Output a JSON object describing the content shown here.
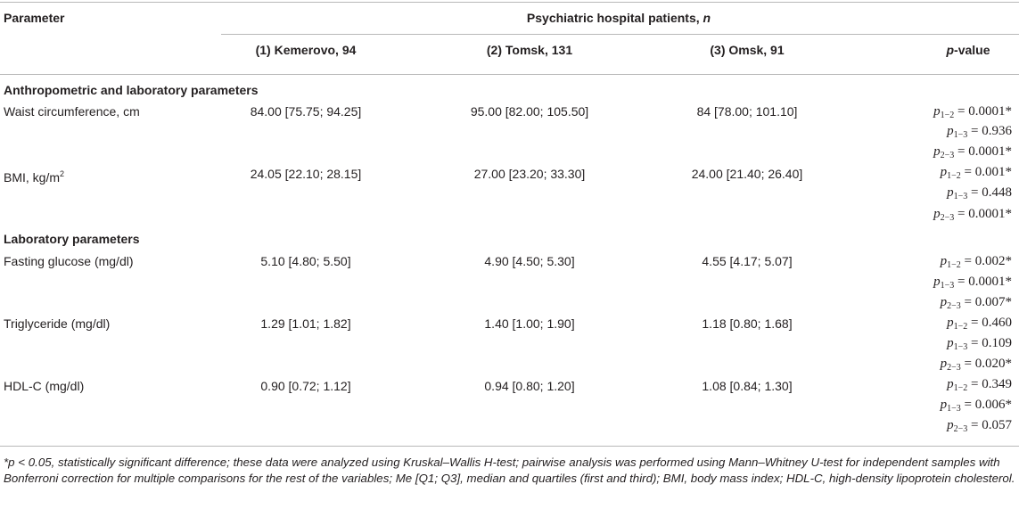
{
  "header": {
    "parameter": "Parameter",
    "group_title": "Psychiatric hospital patients,",
    "group_n": "n",
    "col1": "(1) Kemerovo, 94",
    "col2": "(2) Tomsk, 131",
    "col3": "(3) Omsk, 91",
    "pvalue_p": "p",
    "pvalue_rest": "-value"
  },
  "sections": [
    {
      "title": "Anthropometric and laboratory parameters",
      "rows": [
        {
          "label": "Waist circumference, cm",
          "v1": "84.00 [75.75; 94.25]",
          "v2": "95.00 [82.00; 105.50]",
          "v3": "84 [78.00; 101.10]",
          "pvalues": [
            {
              "p": "p",
              "sub": "1−2",
              "val": " = 0.0001*"
            },
            {
              "p": "p",
              "sub": "1−3",
              "val": " = 0.936"
            },
            {
              "p": "p",
              "sub": "2−3",
              "val": " = 0.0001*"
            }
          ]
        },
        {
          "label": "BMI, kg/m",
          "label_sup": "2",
          "v1": "24.05 [22.10; 28.15]",
          "v2": "27.00 [23.20; 33.30]",
          "v3": "24.00 [21.40; 26.40]",
          "pvalues": [
            {
              "p": "p",
              "sub": "1−2",
              "val": " = 0.001*"
            },
            {
              "p": "p",
              "sub": "1−3",
              "val": " = 0.448"
            },
            {
              "p": "p",
              "sub": "2−3",
              "val": " = 0.0001*"
            }
          ]
        }
      ]
    },
    {
      "title": "Laboratory parameters",
      "rows": [
        {
          "label": "Fasting glucose (mg/dl)",
          "v1": "5.10 [4.80; 5.50]",
          "v2": "4.90 [4.50; 5.30]",
          "v3": "4.55 [4.17; 5.07]",
          "pvalues": [
            {
              "p": "p",
              "sub": "1−2",
              "val": " = 0.002*"
            },
            {
              "p": "p",
              "sub": "1−3",
              "val": " = 0.0001*"
            },
            {
              "p": "p",
              "sub": "2−3",
              "val": " = 0.007*"
            }
          ]
        },
        {
          "label": "Triglyceride (mg/dl)",
          "v1": "1.29 [1.01; 1.82]",
          "v2": "1.40 [1.00; 1.90]",
          "v3": "1.18 [0.80; 1.68]",
          "pvalues": [
            {
              "p": "p",
              "sub": "1−2",
              "val": " = 0.460"
            },
            {
              "p": "p",
              "sub": "1−3",
              "val": " = 0.109"
            },
            {
              "p": "p",
              "sub": "2−3",
              "val": " = 0.020*"
            }
          ]
        },
        {
          "label": "HDL-C (mg/dl)",
          "v1": "0.90 [0.72; 1.12]",
          "v2": "0.94 [0.80; 1.20]",
          "v3": "1.08 [0.84; 1.30]",
          "pvalues": [
            {
              "p": "p",
              "sub": "1−2",
              "val": " = 0.349"
            },
            {
              "p": "p",
              "sub": "1−3",
              "val": " = 0.006*"
            },
            {
              "p": "p",
              "sub": "2−3",
              "val": " = 0.057"
            }
          ]
        }
      ]
    }
  ],
  "footnote": "*p < 0.05, statistically significant difference; these data were analyzed using Kruskal–Wallis H-test; pairwise analysis was performed using Mann–Whitney U-test for independent samples with Bonferroni correction for multiple comparisons for the rest of the variables; Me [Q1; Q3], median and quartiles (first and third); BMI, body mass index; HDL-C, high-density lipoprotein cholesterol."
}
